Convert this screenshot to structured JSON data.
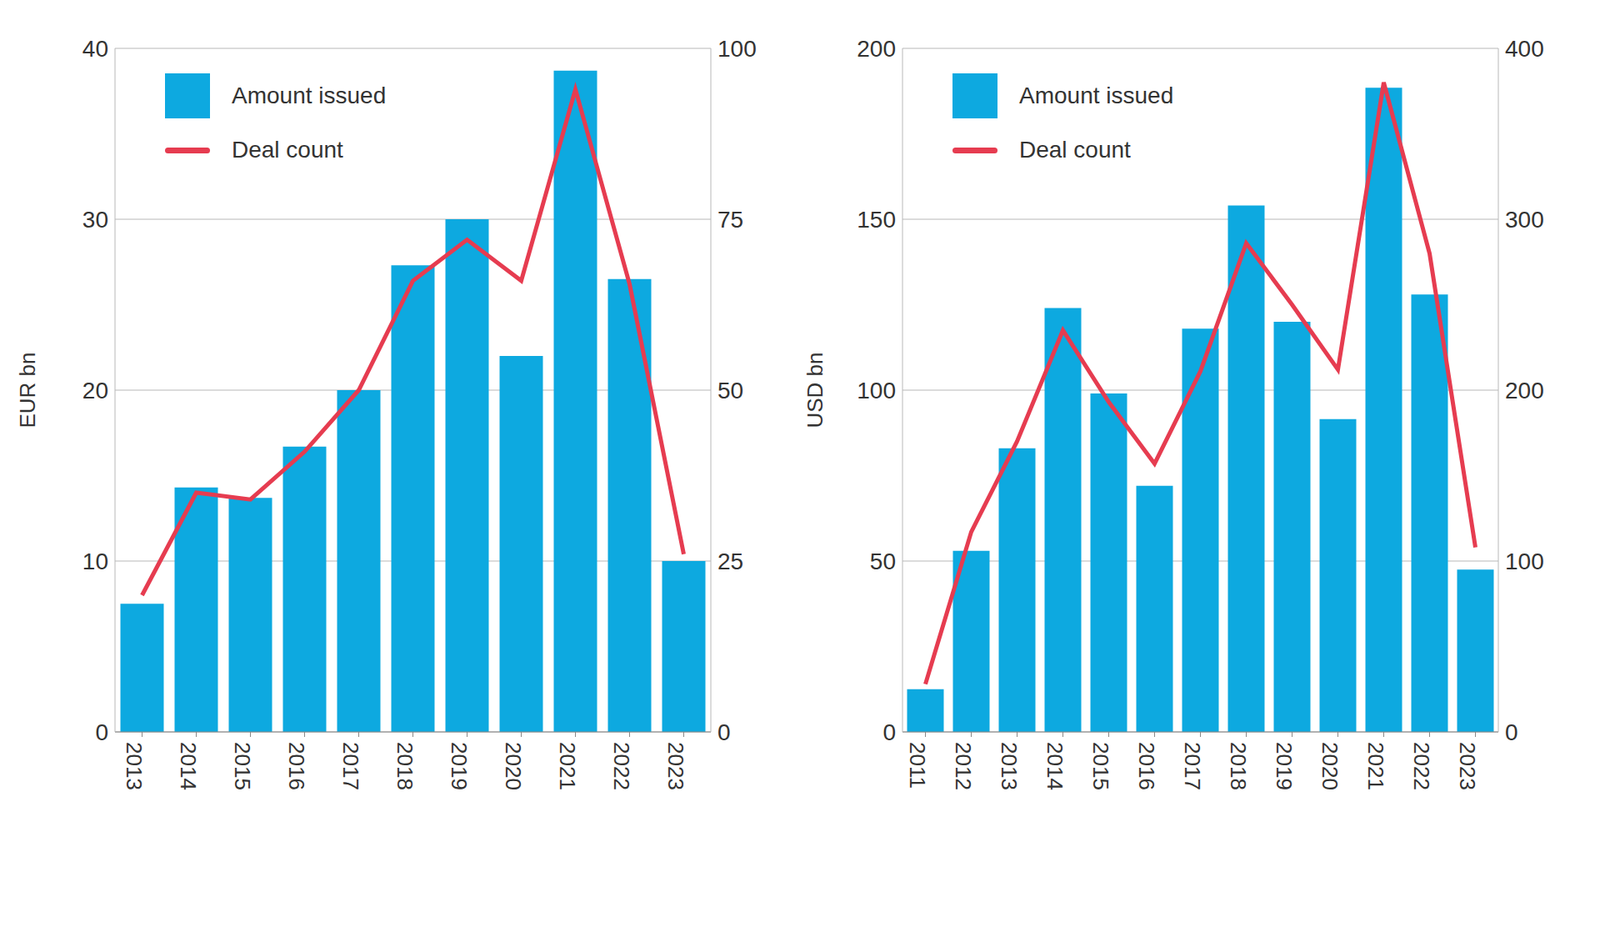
{
  "chart_data": [
    {
      "type": "bar",
      "y_label": "EUR bn",
      "categories": [
        "2013",
        "2014",
        "2015",
        "2016",
        "2017",
        "2018",
        "2019",
        "2020",
        "2021",
        "2022",
        "2023"
      ],
      "series": [
        {
          "name": "Amount issued",
          "type": "bar",
          "color": "#0da9e0",
          "values": [
            7.5,
            14.3,
            13.7,
            16.7,
            20,
            27.3,
            30,
            22,
            38.7,
            26.5,
            10
          ]
        },
        {
          "name": "Deal count",
          "type": "line",
          "axis": "y2",
          "color": "#e63c50",
          "values": [
            20,
            35,
            34,
            41,
            50,
            66,
            72,
            66,
            94,
            65.5,
            26
          ]
        }
      ],
      "ylim": [
        0,
        40
      ],
      "yticks": [
        0,
        10,
        20,
        30,
        40
      ],
      "y2lim": [
        0,
        100
      ],
      "y2ticks": [
        0,
        25,
        50,
        75,
        100
      ],
      "grid": true,
      "legend": "upper left"
    },
    {
      "type": "bar",
      "y_label": "USD bn",
      "categories": [
        "2011",
        "2012",
        "2013",
        "2014",
        "2015",
        "2016",
        "2017",
        "2018",
        "2019",
        "2020",
        "2021",
        "2022",
        "2023"
      ],
      "series": [
        {
          "name": "Amount issued",
          "type": "bar",
          "color": "#0da9e0",
          "values": [
            12.5,
            53,
            83,
            124,
            99,
            72,
            118,
            154,
            120,
            91.5,
            188.5,
            128,
            47.5
          ]
        },
        {
          "name": "Deal count",
          "type": "line",
          "axis": "y2",
          "color": "#e63c50",
          "values": [
            28,
            117,
            170,
            235,
            193,
            157,
            211,
            286,
            250,
            212,
            380,
            280,
            108
          ]
        }
      ],
      "ylim": [
        0,
        200
      ],
      "yticks": [
        0,
        50,
        100,
        150,
        200
      ],
      "y2lim": [
        0,
        400
      ],
      "y2ticks": [
        0,
        100,
        200,
        300,
        400
      ],
      "grid": true,
      "legend": "upper left"
    }
  ]
}
